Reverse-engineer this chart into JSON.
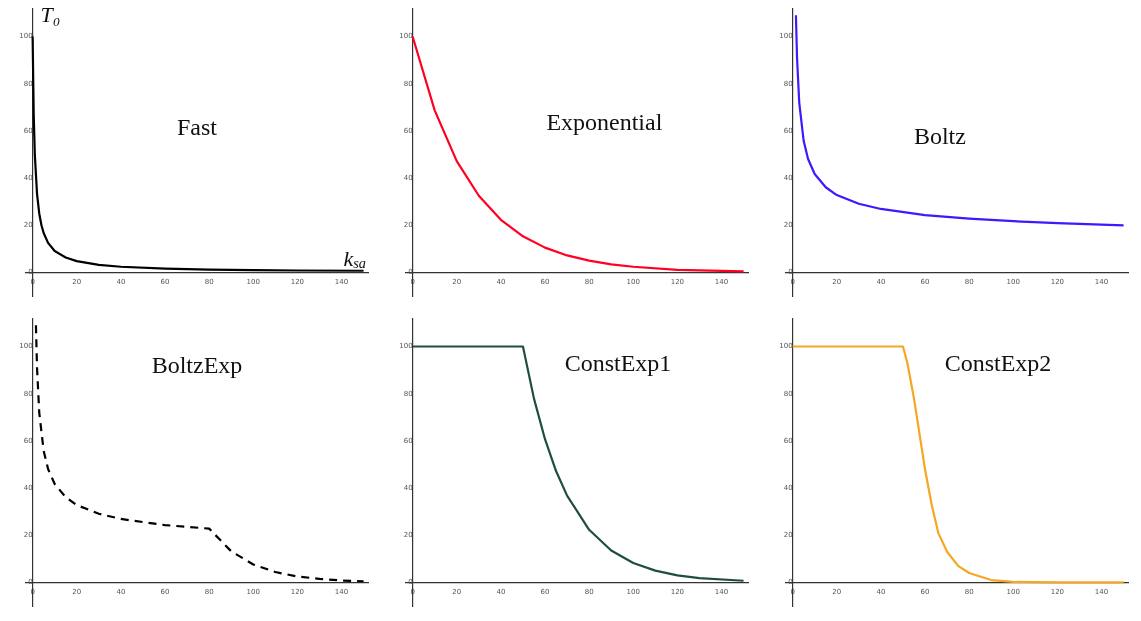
{
  "chart_data": [
    {
      "type": "line",
      "xlabel": "k$_{sa}$",
      "ylabel": "T₀",
      "annotations": [
        "Fast"
      ],
      "xlim": [
        -3,
        152
      ],
      "ylim": [
        -10,
        112
      ],
      "xticks": [
        0,
        20,
        40,
        60,
        80,
        100,
        120,
        140
      ],
      "yticks": [
        0,
        20,
        40,
        60,
        80,
        100
      ],
      "series": [
        {
          "color": "#000000",
          "x": [
            0,
            0.5,
            1,
            2,
            3,
            4,
            5,
            7,
            10,
            15,
            20,
            30,
            40,
            60,
            80,
            100,
            120,
            150
          ],
          "values": [
            100,
            66.7,
            50,
            33.3,
            25,
            20,
            16.7,
            12.5,
            9.1,
            6.3,
            4.8,
            3.2,
            2.4,
            1.6,
            1.2,
            1,
            0.8,
            0.7
          ]
        }
      ]
    },
    {
      "type": "line",
      "annotations": [
        "Exponential"
      ],
      "xlim": [
        -3,
        152
      ],
      "ylim": [
        -10,
        112
      ],
      "xticks": [
        0,
        20,
        40,
        60,
        80,
        100,
        120,
        140
      ],
      "yticks": [
        0,
        20,
        40,
        60,
        80,
        100
      ],
      "series": [
        {
          "color": "#ff0022",
          "x": [
            0,
            10,
            20,
            30,
            40,
            50,
            60,
            70,
            80,
            90,
            100,
            120,
            150
          ],
          "values": [
            100,
            68.7,
            47.2,
            32.5,
            22.3,
            15.3,
            10.5,
            7.2,
            5,
            3.4,
            2.4,
            1.1,
            0.4
          ]
        }
      ]
    },
    {
      "type": "line",
      "annotations": [
        "Boltz"
      ],
      "xlim": [
        -3,
        152
      ],
      "ylim": [
        -10,
        112
      ],
      "xticks": [
        0,
        20,
        40,
        60,
        80,
        100,
        120,
        140
      ],
      "yticks": [
        0,
        20,
        40,
        60,
        80,
        100
      ],
      "series": [
        {
          "color": "#3a1aff",
          "x": [
            1.5,
            2,
            3,
            5,
            7,
            10,
            15,
            20,
            30,
            40,
            60,
            80,
            100,
            120,
            150
          ],
          "values": [
            109,
            91,
            72,
            55.8,
            48.1,
            41.7,
            36.1,
            32.8,
            29.1,
            26.9,
            24.3,
            22.8,
            21.7,
            20.9,
            19.9
          ]
        }
      ]
    },
    {
      "type": "line",
      "annotations": [
        "BoltzExp"
      ],
      "line_style": "dashed",
      "xlim": [
        -3,
        152
      ],
      "ylim": [
        -10,
        112
      ],
      "xticks": [
        0,
        20,
        40,
        60,
        80,
        100,
        120,
        140
      ],
      "yticks": [
        0,
        20,
        40,
        60,
        80,
        100
      ],
      "series": [
        {
          "color": "#000000",
          "x": [
            1.5,
            2,
            3,
            5,
            7,
            10,
            15,
            20,
            30,
            40,
            60,
            80,
            90,
            100,
            110,
            120,
            130,
            140,
            150
          ],
          "values": [
            109,
            91,
            72,
            55.8,
            48.1,
            41.7,
            36.1,
            32.8,
            29.1,
            26.9,
            24.3,
            22.8,
            13.2,
            7.6,
            4.4,
            2.5,
            1.5,
            0.8,
            0.5
          ]
        }
      ]
    },
    {
      "type": "line",
      "annotations": [
        "ConstExp1"
      ],
      "xlim": [
        -3,
        152
      ],
      "ylim": [
        -10,
        112
      ],
      "xticks": [
        0,
        20,
        40,
        60,
        80,
        100,
        120,
        140
      ],
      "yticks": [
        0,
        20,
        40,
        60,
        80,
        100
      ],
      "series": [
        {
          "color": "#1f4f3a",
          "x": [
            0,
            50,
            55,
            60,
            65,
            70,
            80,
            90,
            100,
            110,
            120,
            130,
            150
          ],
          "values": [
            100,
            100,
            77.9,
            60.7,
            47.2,
            36.8,
            22.3,
            13.5,
            8.2,
            5,
            3,
            1.8,
            0.7
          ]
        }
      ]
    },
    {
      "type": "line",
      "annotations": [
        "ConstExp2"
      ],
      "xlim": [
        -3,
        152
      ],
      "ylim": [
        -10,
        112
      ],
      "xticks": [
        0,
        20,
        40,
        60,
        80,
        100,
        120,
        140
      ],
      "yticks": [
        0,
        20,
        40,
        60,
        80,
        100
      ],
      "series": [
        {
          "color": "#f5a623",
          "x": [
            0,
            50,
            52,
            55,
            58,
            60,
            63,
            66,
            70,
            75,
            80,
            90,
            100,
            120,
            150
          ],
          "values": [
            100,
            100,
            93,
            78,
            60,
            48,
            33,
            21,
            13,
            7,
            4,
            1,
            0.2,
            0,
            0
          ]
        }
      ]
    }
  ]
}
